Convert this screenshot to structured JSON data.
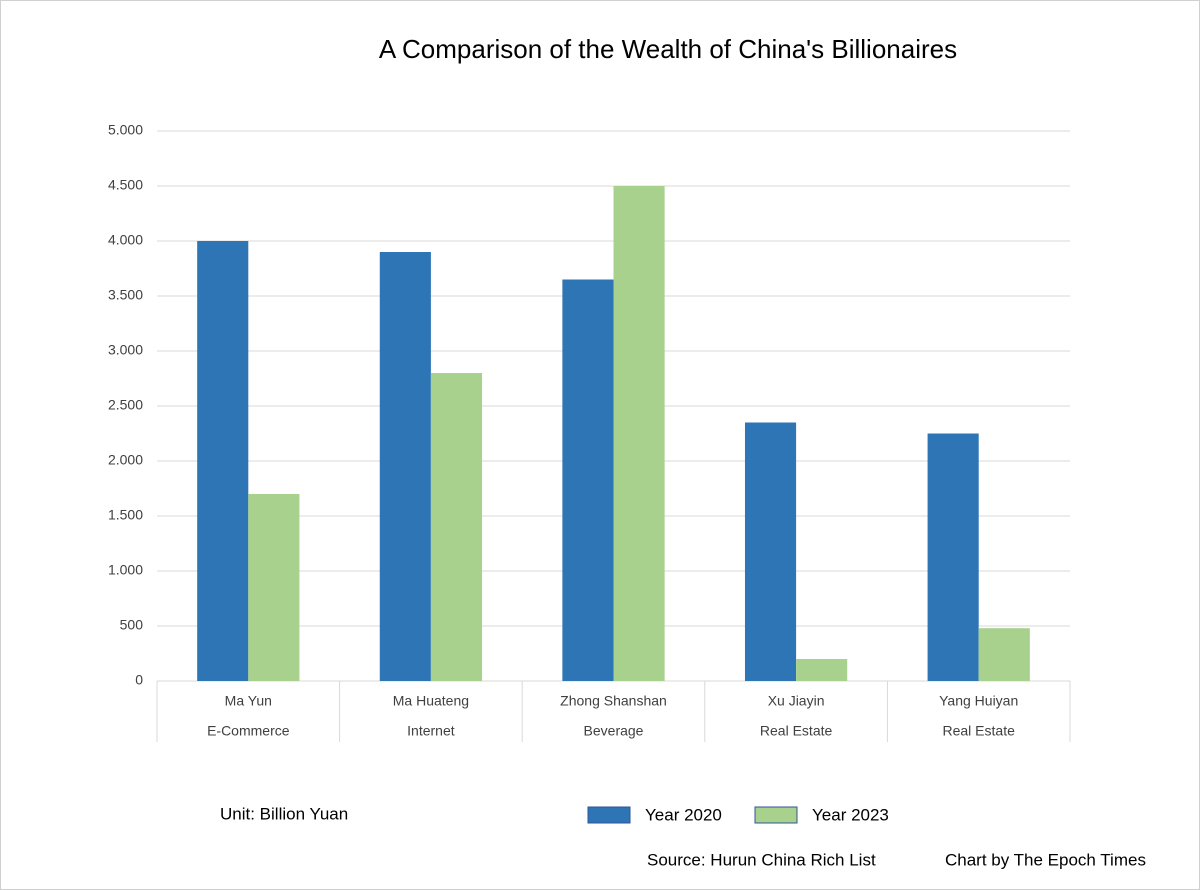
{
  "chart_data": {
    "type": "bar",
    "title": "A Comparison of the Wealth of China's Billionaires",
    "categories": [
      "Ma Yun",
      "Ma Huateng",
      "Zhong Shanshan",
      "Xu Jiayin",
      "Yang Huiyan"
    ],
    "sectors": [
      "E-Commerce",
      "Internet",
      "Beverage",
      "Real Estate",
      "Real Estate"
    ],
    "series": [
      {
        "name": "Year 2020",
        "color": "#2e75b6",
        "values": [
          4000,
          3900,
          3650,
          2350,
          2250
        ]
      },
      {
        "name": "Year 2023",
        "color": "#a9d18e",
        "values": [
          1700,
          2800,
          4500,
          200,
          480
        ]
      }
    ],
    "ylim": [
      0,
      5000
    ],
    "yticks": [
      0,
      {
        "value": 500,
        "label": "500"
      },
      {
        "value": 1000,
        "label": "1.000"
      },
      {
        "value": 1500,
        "label": "1.500"
      },
      {
        "value": 2000,
        "label": "2.000"
      },
      {
        "value": 2500,
        "label": "2.500"
      },
      {
        "value": 3000,
        "label": "3.000"
      },
      {
        "value": 3500,
        "label": "3.500"
      },
      {
        "value": 4000,
        "label": "4.000"
      },
      {
        "value": 4500,
        "label": "4.500"
      },
      {
        "value": 5000,
        "label": "5.000"
      }
    ],
    "grid": true,
    "unit_note": "Unit: Billion Yuan",
    "source": "Source: Hurun China Rich List",
    "credit": "Chart by The Epoch Times"
  }
}
